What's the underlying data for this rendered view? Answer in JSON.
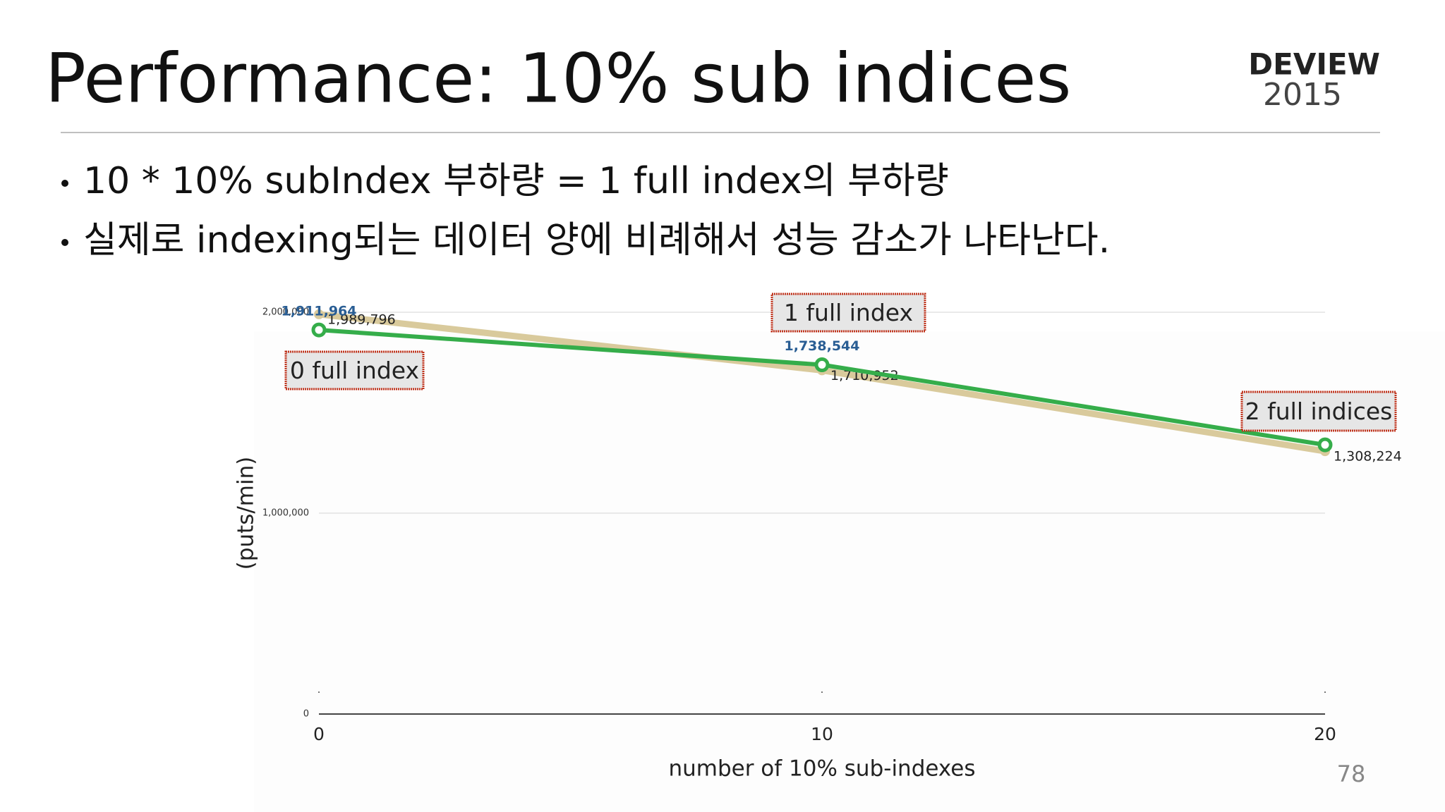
{
  "slide_title": "Performance: 10% sub indices",
  "logo": {
    "name": "DEVIEW",
    "year": "2015"
  },
  "bullets": [
    "10 * 10% subIndex 부하량 = 1 full index의 부하량",
    "실제로 indexing되는 데이터 양에 비례해서 성능 감소가 나타난다."
  ],
  "page_number": "78",
  "chart_data": {
    "type": "line",
    "x_label": "number of 10% sub-indexes",
    "y_label": "(puts/min)",
    "x": [
      0,
      10,
      20
    ],
    "series": [
      {
        "color": "#d9ca9c",
        "values": [
          1989796,
          1710952,
          1308224
        ],
        "value_labels": [
          "1,989,796",
          "1,710,952",
          "1,308,224"
        ]
      },
      {
        "color": "#35ad4a",
        "values": [
          1911964,
          1738544,
          1340000
        ],
        "value_labels": [
          "1,911,964",
          "1,738,544",
          null
        ]
      }
    ],
    "xlim": [
      0,
      20
    ],
    "xticks": [
      0,
      10,
      20
    ],
    "ylim": [
      0,
      2000000
    ],
    "yticks": [
      0,
      {
        "value": 1000000,
        "label": "1,000,000"
      },
      {
        "value": 2000000,
        "label": "2,000,000"
      }
    ],
    "grid": true,
    "annotations": [
      "0 full index",
      "1 full index",
      "2 full indices"
    ]
  }
}
